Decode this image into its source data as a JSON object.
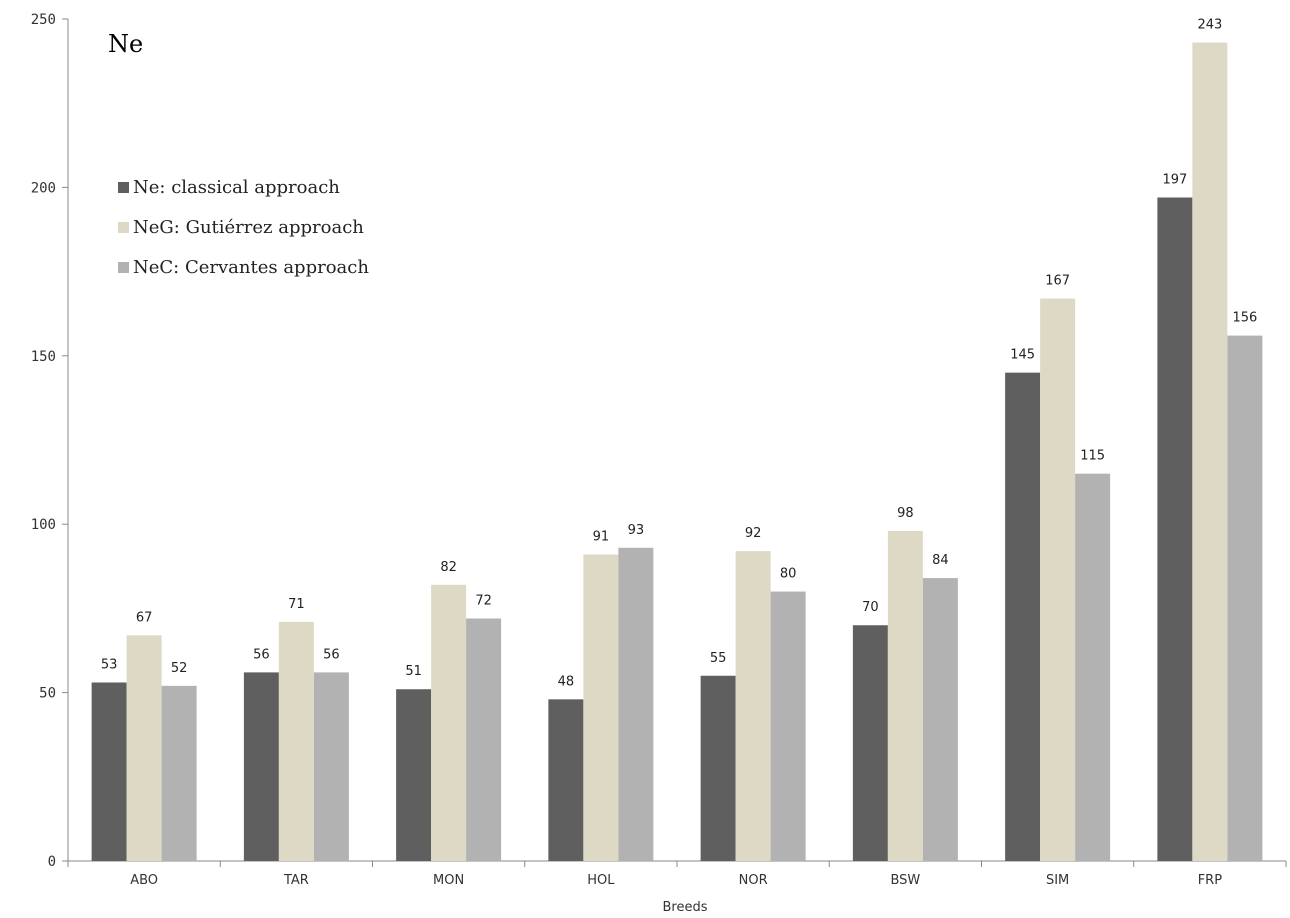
{
  "chart_data": {
    "type": "bar",
    "title": "Ne",
    "xlabel": "Breeds",
    "ylabel": "",
    "ylim": [
      0,
      250
    ],
    "yticks": [
      0,
      50,
      100,
      150,
      200,
      250
    ],
    "grid": false,
    "legend_position": "top-left",
    "categories": [
      "ABO",
      "TAR",
      "MON",
      "HOL",
      "NOR",
      "BSW",
      "SIM",
      "FRP"
    ],
    "series": [
      {
        "name": "Ne: classical approach",
        "color": "#5f5f5f",
        "values": [
          53,
          56,
          51,
          48,
          55,
          70,
          145,
          197
        ]
      },
      {
        "name": "NeG: Gutiérrez approach",
        "color": "#ddd9c4",
        "values": [
          67,
          71,
          82,
          91,
          92,
          98,
          167,
          243
        ]
      },
      {
        "name": "NeC: Cervantes approach",
        "color": "#b2b2b2",
        "values": [
          52,
          56,
          72,
          93,
          80,
          84,
          115,
          156
        ]
      }
    ]
  }
}
